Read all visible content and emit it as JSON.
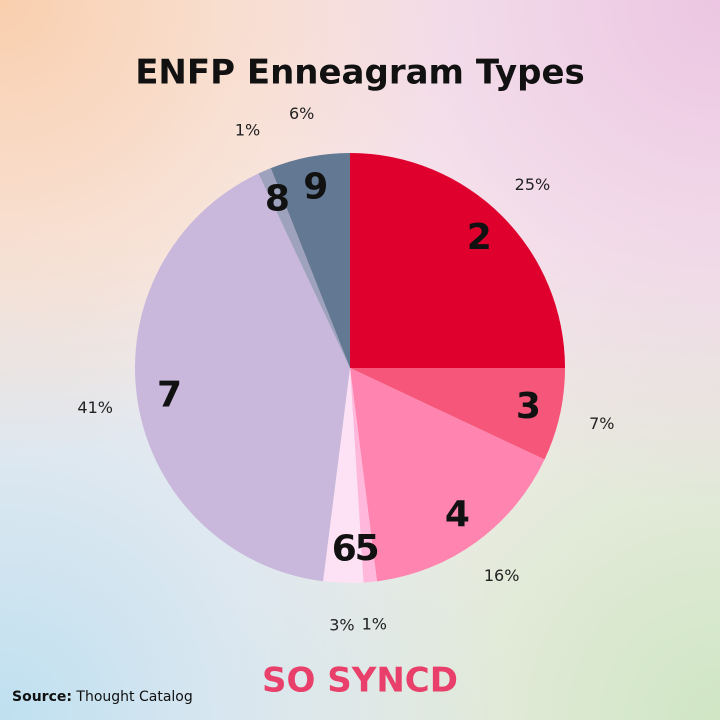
{
  "chart_data": {
    "type": "pie",
    "title": "ENFP Enneagram Types",
    "categories": [
      "2",
      "3",
      "4",
      "5",
      "6",
      "7",
      "8",
      "9"
    ],
    "values": [
      25,
      7,
      16,
      1,
      3,
      41,
      1,
      6
    ],
    "value_labels": [
      "25%",
      "7%",
      "16%",
      "1%",
      "3%",
      "41%",
      "1%",
      "6%"
    ],
    "colors": [
      "#e0002e",
      "#f5567a",
      "#ff85b0",
      "#ffb8dc",
      "#fde1f5",
      "#c9b8dc",
      "#9ea2bc",
      "#637892"
    ]
  },
  "footer": {
    "source_label": "Source:",
    "source": "Thought Catalog",
    "brand": "SO SYNCD"
  }
}
